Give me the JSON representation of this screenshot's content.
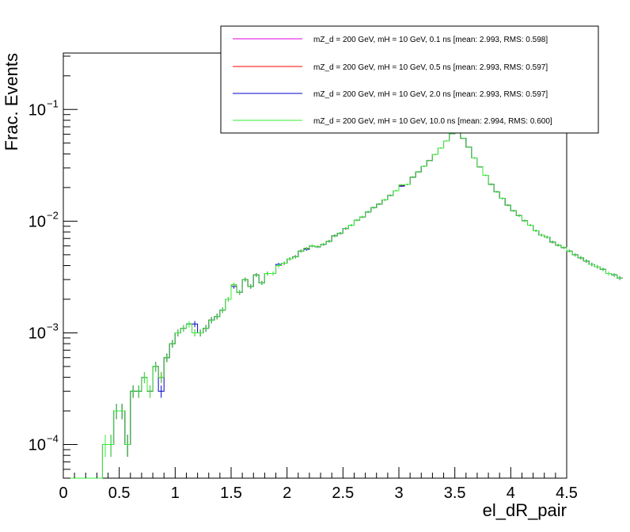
{
  "chart_data": {
    "type": "line",
    "xlabel": "el_dR_pair",
    "ylabel": "Frac. Events",
    "xlim": [
      0,
      4.5
    ],
    "ylim": [
      5e-05,
      0.32
    ],
    "yscale": "log",
    "grid": false,
    "legend_position": "top-right",
    "x_ticks": [
      "0",
      "0.5",
      "1",
      "1.5",
      "2",
      "2.5",
      "3",
      "3.5",
      "4",
      "4.5"
    ],
    "y_ticks": [
      {
        "base": "10",
        "exp": "−4",
        "value": 0.0001
      },
      {
        "base": "10",
        "exp": "−3",
        "value": 0.001
      },
      {
        "base": "10",
        "exp": "−2",
        "value": 0.01
      },
      {
        "base": "10",
        "exp": "−1",
        "value": 0.1
      }
    ],
    "bin_width": 0.05,
    "bin_x_start": 0,
    "series": [
      {
        "name": "mZ_d = 200 GeV, mH = 10 GeV, 0.1 ns [mean: 2.993, RMS: 0.598]",
        "color": "#e000e0",
        "values": [
          0,
          0,
          0,
          0,
          0,
          0,
          0,
          0.0001,
          0.0001,
          0.0002,
          0.0002,
          0.0001,
          0.0003,
          0.0003,
          0.0004,
          0.0003,
          0.0005,
          0.0004,
          0.0006,
          0.0008,
          0.001,
          0.0011,
          0.0012,
          0.001,
          0.001,
          0.0011,
          0.0013,
          0.0014,
          0.0016,
          0.002,
          0.0027,
          0.0023,
          0.003,
          0.0026,
          0.0033,
          0.0028,
          0.0034,
          0.0034,
          0.004,
          0.0042,
          0.0046,
          0.0048,
          0.0054,
          0.0057,
          0.006,
          0.0059,
          0.0062,
          0.0066,
          0.0074,
          0.0078,
          0.0086,
          0.0092,
          0.0102,
          0.0109,
          0.0121,
          0.0132,
          0.0142,
          0.0155,
          0.017,
          0.0187,
          0.0211,
          0.0213,
          0.0248,
          0.0276,
          0.031,
          0.0349,
          0.0396,
          0.0451,
          0.0523,
          0.0608,
          0.0713,
          0.0553,
          0.046,
          0.0368,
          0.0306,
          0.0257,
          0.0214,
          0.0183,
          0.016,
          0.0139,
          0.0124,
          0.0112,
          0.0101,
          0.0092,
          0.0082,
          0.0075,
          0.0072,
          0.0065,
          0.0061,
          0.0058,
          0.0054,
          0.005,
          0.0047,
          0.0044,
          0.0041,
          0.0039,
          0.0037,
          0.0034,
          0.0033,
          0.0031
        ]
      },
      {
        "name": "mZ_d = 200 GeV, mH = 10 GeV, 0.5 ns [mean: 2.993, RMS: 0.597]",
        "color": "#ff0000",
        "values": [
          0,
          0,
          0,
          0,
          0,
          0,
          0,
          0.0001,
          0.0001,
          0.0002,
          0.0002,
          0.0001,
          0.0003,
          0.0003,
          0.0004,
          0.0003,
          0.0005,
          0.0004,
          0.0006,
          0.0008,
          0.001,
          0.0011,
          0.0012,
          0.001,
          0.001,
          0.0011,
          0.0013,
          0.0014,
          0.0016,
          0.002,
          0.0027,
          0.0023,
          0.003,
          0.0026,
          0.0033,
          0.0028,
          0.0034,
          0.0034,
          0.004,
          0.0042,
          0.0046,
          0.0048,
          0.0054,
          0.0057,
          0.006,
          0.0059,
          0.0062,
          0.0066,
          0.0074,
          0.0078,
          0.0086,
          0.0092,
          0.0102,
          0.0109,
          0.0121,
          0.0132,
          0.0142,
          0.0155,
          0.017,
          0.0187,
          0.0208,
          0.0213,
          0.0248,
          0.0276,
          0.031,
          0.0349,
          0.0396,
          0.0451,
          0.0523,
          0.0608,
          0.0713,
          0.0553,
          0.046,
          0.0368,
          0.0306,
          0.0257,
          0.0214,
          0.0183,
          0.016,
          0.0139,
          0.0124,
          0.0112,
          0.0101,
          0.0092,
          0.0082,
          0.0075,
          0.0072,
          0.0065,
          0.0061,
          0.0058,
          0.0054,
          0.005,
          0.0047,
          0.0044,
          0.0041,
          0.0039,
          0.0037,
          0.0034,
          0.0033,
          0.0031
        ]
      },
      {
        "name": "mZ_d = 200 GeV, mH = 10 GeV, 2.0 ns [mean: 2.993, RMS: 0.597]",
        "color": "#0000cc",
        "values": [
          0,
          0,
          0,
          0,
          0,
          0,
          0,
          0.0001,
          0.0001,
          0.0002,
          0.0002,
          0.0001,
          0.0003,
          0.0003,
          0.0004,
          0.0003,
          0.0005,
          0.0003,
          0.0006,
          0.0008,
          0.001,
          0.0011,
          0.0012,
          0.0012,
          0.001,
          0.0011,
          0.0013,
          0.0014,
          0.0016,
          0.002,
          0.0026,
          0.0023,
          0.003,
          0.0026,
          0.0033,
          0.0028,
          0.0034,
          0.0034,
          0.0041,
          0.0042,
          0.0046,
          0.0048,
          0.0054,
          0.0056,
          0.006,
          0.0059,
          0.0062,
          0.0066,
          0.0074,
          0.0078,
          0.0086,
          0.0092,
          0.0102,
          0.0109,
          0.0121,
          0.0132,
          0.0142,
          0.0155,
          0.017,
          0.0187,
          0.0206,
          0.0213,
          0.0248,
          0.0276,
          0.031,
          0.0349,
          0.0396,
          0.0451,
          0.0523,
          0.0608,
          0.0713,
          0.0553,
          0.046,
          0.0368,
          0.0306,
          0.0257,
          0.0214,
          0.0183,
          0.016,
          0.0139,
          0.0124,
          0.0112,
          0.0101,
          0.0092,
          0.0082,
          0.0075,
          0.0072,
          0.0065,
          0.0061,
          0.0058,
          0.0054,
          0.005,
          0.0047,
          0.0044,
          0.0041,
          0.0039,
          0.0037,
          0.0034,
          0.0033,
          0.0031
        ]
      },
      {
        "name": "mZ_d = 200 GeV, mH = 10 GeV, 10.0 ns [mean: 2.994, RMS: 0.600]",
        "color": "#33ee33",
        "values": [
          0,
          0,
          0,
          0,
          0,
          0,
          0,
          0.0001,
          0.0001,
          0.0002,
          0.0002,
          0.0001,
          0.0003,
          0.0003,
          0.0004,
          0.0003,
          0.0005,
          0.0004,
          0.0006,
          0.0008,
          0.001,
          0.0011,
          0.0012,
          0.001,
          0.001,
          0.0011,
          0.0013,
          0.0014,
          0.0016,
          0.002,
          0.0027,
          0.0023,
          0.003,
          0.0026,
          0.0033,
          0.0028,
          0.0034,
          0.0034,
          0.004,
          0.0042,
          0.0046,
          0.0048,
          0.0054,
          0.0057,
          0.006,
          0.0059,
          0.0062,
          0.0066,
          0.0074,
          0.0078,
          0.0086,
          0.0092,
          0.0102,
          0.0109,
          0.0121,
          0.0132,
          0.0142,
          0.0155,
          0.017,
          0.0187,
          0.0211,
          0.0213,
          0.0248,
          0.0276,
          0.031,
          0.0349,
          0.0396,
          0.0451,
          0.0523,
          0.0608,
          0.0713,
          0.0553,
          0.046,
          0.0368,
          0.0306,
          0.0257,
          0.0214,
          0.0183,
          0.016,
          0.0139,
          0.0124,
          0.0112,
          0.0101,
          0.0092,
          0.0082,
          0.0075,
          0.0072,
          0.0065,
          0.0061,
          0.0058,
          0.0054,
          0.005,
          0.0047,
          0.0044,
          0.0041,
          0.0039,
          0.0037,
          0.0034,
          0.0033,
          0.0031
        ]
      }
    ]
  }
}
